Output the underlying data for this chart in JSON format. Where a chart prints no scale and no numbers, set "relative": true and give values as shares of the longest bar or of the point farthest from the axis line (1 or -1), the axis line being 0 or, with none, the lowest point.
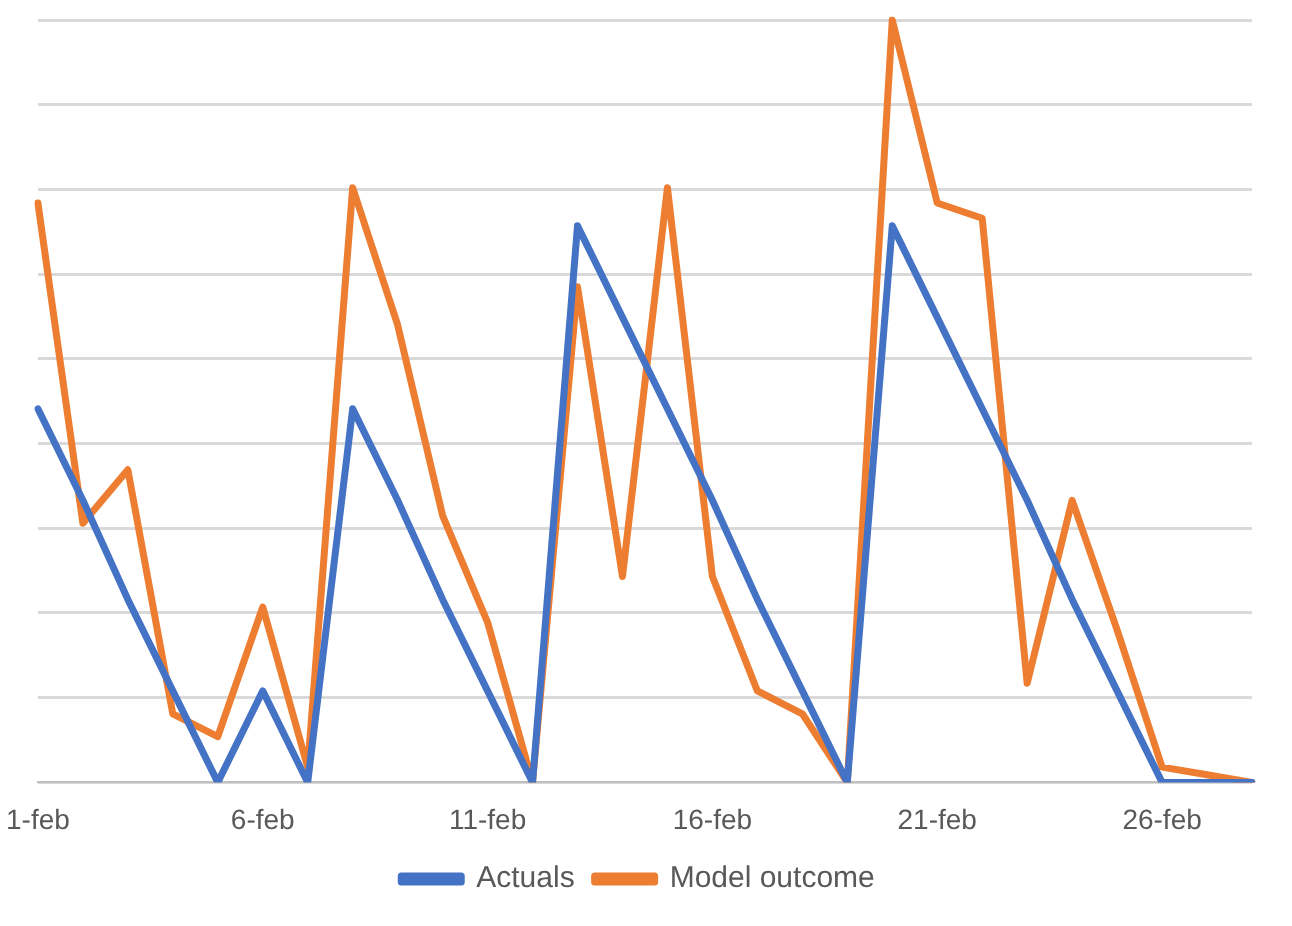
{
  "chart_data": {
    "type": "line",
    "relative": true,
    "categories": [
      "1-feb",
      null,
      null,
      null,
      null,
      "6-feb",
      null,
      null,
      null,
      null,
      "11-feb",
      null,
      null,
      null,
      null,
      "16-feb",
      null,
      null,
      null,
      null,
      "21-feb",
      null,
      null,
      null,
      null,
      "26-feb",
      null,
      null
    ],
    "series": [
      {
        "name": "Actuals",
        "color": "#4472c4",
        "values": [
          0.49,
          0.37,
          0.24,
          0.12,
          0,
          0.12,
          0,
          0.49,
          0.37,
          0.24,
          0.12,
          0,
          0.73,
          0.61,
          0.49,
          0.37,
          0.24,
          0.12,
          0,
          0.73,
          0.61,
          0.49,
          0.37,
          0.24,
          0.12,
          0,
          0,
          0
        ]
      },
      {
        "name": "Model outcome",
        "color": "#ed7d31",
        "values": [
          0.76,
          0.34,
          0.41,
          0.09,
          0.06,
          0.23,
          0.02,
          0.78,
          0.6,
          0.35,
          0.21,
          0,
          0.65,
          0.27,
          0.78,
          0.27,
          0.12,
          0.09,
          0,
          1,
          0.76,
          0.74,
          0.13,
          0.37,
          0.2,
          0.02,
          0.01,
          0
        ]
      }
    ],
    "grid": "y",
    "legend": "bottom",
    "marker": "none",
    "line_style": "solid"
  }
}
